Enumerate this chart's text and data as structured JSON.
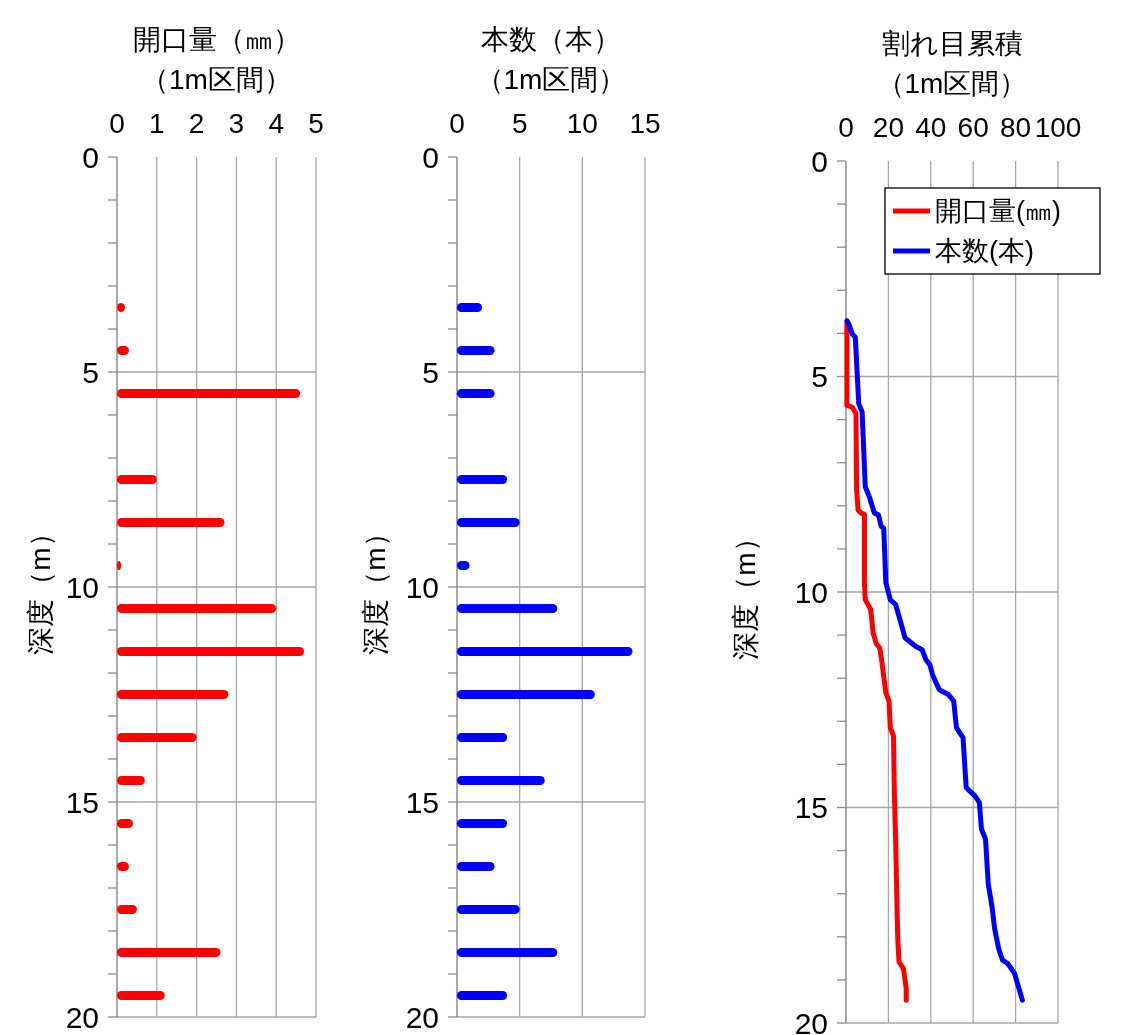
{
  "chart_data": [
    {
      "type": "bar",
      "orientation": "horizontal",
      "title": "開口量（㎜）",
      "subtitle": "（1m区間）",
      "ylabel": "深度（m）",
      "x": [
        3.5,
        4.5,
        5.5,
        7.5,
        8.5,
        9.5,
        10.5,
        11.5,
        12.5,
        13.5,
        14.5,
        15.5,
        16.5,
        17.5,
        18.5,
        19.5
      ],
      "values": [
        0.2,
        0.3,
        4.6,
        1.0,
        2.7,
        0.1,
        4.0,
        4.7,
        2.8,
        2.0,
        0.7,
        0.4,
        0.3,
        0.5,
        2.6,
        1.2
      ],
      "color": "#ff0000",
      "xlim": [
        0,
        5
      ],
      "xticks": [
        0,
        1,
        2,
        3,
        4,
        5
      ],
      "ylim": [
        20,
        0
      ],
      "yticks": [
        0,
        {
          "value": 1,
          "label": null
        },
        {
          "value": 2,
          "label": null
        },
        {
          "value": 3,
          "label": null
        },
        {
          "value": 4,
          "label": null
        },
        5,
        {
          "value": 6,
          "label": null
        },
        {
          "value": 7,
          "label": null
        },
        {
          "value": 8,
          "label": null
        },
        {
          "value": 9,
          "label": null
        },
        10,
        {
          "value": 11,
          "label": null
        },
        {
          "value": 12,
          "label": null
        },
        {
          "value": 13,
          "label": null
        },
        {
          "value": 14,
          "label": null
        },
        15,
        {
          "value": 16,
          "label": null
        },
        {
          "value": 17,
          "label": null
        },
        {
          "value": 18,
          "label": null
        },
        {
          "value": 19,
          "label": null
        },
        20
      ],
      "grid": true
    },
    {
      "type": "bar",
      "orientation": "horizontal",
      "title": "本数（本）",
      "subtitle": "（1m区間）",
      "ylabel": "深度（m）",
      "x": [
        3.5,
        4.5,
        5.5,
        7.5,
        8.5,
        9.5,
        10.5,
        11.5,
        12.5,
        13.5,
        14.5,
        15.5,
        16.5,
        17.5,
        18.5,
        19.5
      ],
      "values": [
        2,
        3,
        3,
        4,
        5,
        1,
        8,
        14,
        11,
        4,
        7,
        4,
        3,
        5,
        8,
        4
      ],
      "color": "#0000ff",
      "xlim": [
        0,
        15
      ],
      "xticks": [
        0,
        5,
        10,
        15
      ],
      "ylim": [
        20,
        0
      ],
      "yticks": [
        0,
        {
          "value": 1,
          "label": null
        },
        {
          "value": 2,
          "label": null
        },
        {
          "value": 3,
          "label": null
        },
        {
          "value": 4,
          "label": null
        },
        5,
        {
          "value": 6,
          "label": null
        },
        {
          "value": 7,
          "label": null
        },
        {
          "value": 8,
          "label": null
        },
        {
          "value": 9,
          "label": null
        },
        10,
        {
          "value": 11,
          "label": null
        },
        {
          "value": 12,
          "label": null
        },
        {
          "value": 13,
          "label": null
        },
        {
          "value": 14,
          "label": null
        },
        15,
        {
          "value": 16,
          "label": null
        },
        {
          "value": 17,
          "label": null
        },
        {
          "value": 18,
          "label": null
        },
        {
          "value": 19,
          "label": null
        },
        20
      ],
      "grid": true
    },
    {
      "type": "line",
      "title": "割れ目累積",
      "subtitle": "（1m区間）",
      "ylabel": "深度（m）",
      "legend": "top right",
      "series": [
        {
          "name": "開口量(㎜)",
          "color": "#ff0000",
          "x": [
            0.4,
            0.4,
            2.9,
            4.7,
            5.0,
            5.7,
            7.2,
            8.7,
            8.7,
            9.1,
            11.6,
            12.8,
            14.3,
            15.9,
            16.8,
            17.8,
            18.8,
            20.3,
            20.9,
            22.4,
            22.8,
            23.4,
            24.4,
            25.0,
            27.1,
            28.4,
            28.4
          ],
          "values": [
            3.71,
            5.67,
            5.71,
            5.86,
            7.6,
            8.1,
            8.17,
            8.2,
            9.8,
            10.18,
            10.4,
            10.95,
            11.2,
            11.3,
            11.57,
            11.96,
            12.34,
            12.53,
            13.15,
            13.34,
            14.65,
            15.73,
            18.04,
            18.58,
            18.74,
            19.2,
            19.47
          ]
        },
        {
          "name": "本数(本)",
          "color": "#0000ff",
          "x": [
            0.6,
            1.6,
            2.9,
            4.4,
            6.0,
            7.6,
            9.1,
            11.0,
            13.4,
            15.3,
            16.6,
            17.8,
            18.8,
            20.9,
            23.4,
            25.9,
            27.8,
            32.8,
            35.9,
            37.7,
            39.6,
            40.8,
            44.0,
            48.3,
            50.8,
            52.1,
            55.2,
            56.7,
            60.8,
            62.9,
            63.9,
            65.8,
            67.1,
            68.9,
            70.1,
            72.0,
            73.8,
            76.3,
            79.5,
            83.2
          ],
          "values": [
            3.71,
            3.82,
            4.01,
            4.09,
            5.63,
            5.82,
            7.56,
            7.79,
            8.17,
            8.21,
            8.48,
            8.52,
            9.79,
            10.18,
            10.29,
            10.72,
            11.06,
            11.26,
            11.34,
            11.57,
            11.69,
            11.92,
            12.27,
            12.38,
            12.53,
            13.15,
            13.38,
            14.54,
            14.73,
            14.88,
            15.5,
            15.73,
            16.77,
            17.31,
            17.81,
            18.27,
            18.54,
            18.62,
            18.85,
            19.47
          ]
        }
      ],
      "xlim": [
        0,
        100
      ],
      "xticks": [
        0,
        20,
        40,
        60,
        80,
        100
      ],
      "ylim": [
        20,
        0
      ],
      "yticks": [
        0,
        {
          "value": 1,
          "label": null
        },
        {
          "value": 2,
          "label": null
        },
        {
          "value": 3,
          "label": null
        },
        {
          "value": 4,
          "label": null
        },
        5,
        {
          "value": 6,
          "label": null
        },
        {
          "value": 7,
          "label": null
        },
        {
          "value": 8,
          "label": null
        },
        {
          "value": 9,
          "label": null
        },
        10,
        {
          "value": 11,
          "label": null
        },
        {
          "value": 12,
          "label": null
        },
        {
          "value": 13,
          "label": null
        },
        {
          "value": 14,
          "label": null
        },
        15,
        {
          "value": 16,
          "label": null
        },
        {
          "value": 17,
          "label": null
        },
        {
          "value": 18,
          "label": null
        },
        {
          "value": 19,
          "label": null
        },
        20
      ],
      "grid": true
    }
  ]
}
